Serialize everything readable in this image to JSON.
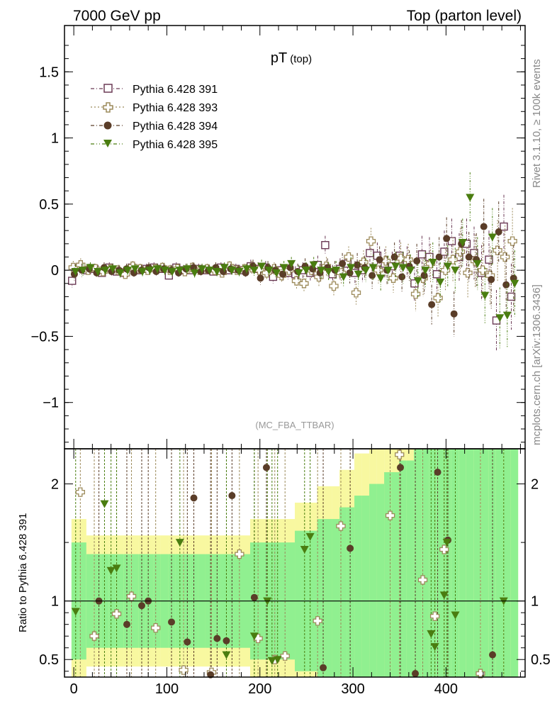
{
  "header": {
    "left": "7000 GeV pp",
    "right": "Top (parton level)"
  },
  "side_labels": {
    "rivet": "Rivet 3.1.10, ≥ 100k events",
    "mcplots": "mcplots.cern.ch [arXiv:1306.3436]"
  },
  "colors": {
    "s391": "#6b3a55",
    "s393": "#9c8a5a",
    "s394": "#5a3d28",
    "s395": "#4a7d10",
    "band_green": "#90f090",
    "band_yellow": "#f8f8a0"
  },
  "chart_data": [
    {
      "type": "scatter",
      "title": "pT",
      "title_sub": "(top)",
      "watermark": "(MC_FBA_TTBAR)",
      "xlim": [
        -10,
        485
      ],
      "ylim": [
        -1.35,
        1.85
      ],
      "yticks": [
        -1,
        -0.5,
        0,
        0.5,
        1,
        1.5
      ],
      "ytick_labels": [
        "−1",
        "−0.5",
        "0",
        "0.5",
        "1",
        "1.5"
      ],
      "legend_placement": "top-left",
      "x": [
        0,
        8,
        16,
        24,
        32,
        40,
        48,
        56,
        64,
        72,
        80,
        88,
        96,
        104,
        112,
        120,
        128,
        136,
        144,
        152,
        160,
        168,
        176,
        184,
        192,
        200,
        208,
        216,
        224,
        232,
        240,
        248,
        256,
        264,
        272,
        280,
        288,
        296,
        304,
        312,
        320,
        328,
        336,
        344,
        352,
        360,
        368,
        376,
        384,
        392,
        400,
        408,
        416,
        424,
        432,
        440,
        448,
        456,
        464,
        472
      ],
      "series": [
        {
          "name": "Pythia 6.428 391",
          "marker": "open-square",
          "color_key": "s391",
          "values": [
            -0.08,
            0.02,
            0.0,
            0.01,
            -0.02,
            0.02,
            -0.01,
            -0.02,
            0.02,
            0.0,
            0.01,
            0.02,
            0.01,
            -0.04,
            0.02,
            0.0,
            0.0,
            0.01,
            0.0,
            -0.01,
            0.02,
            0.0,
            0.01,
            0.0,
            0.03,
            0.01,
            0.02,
            -0.05,
            0.0,
            -0.02,
            -0.03,
            0.0,
            -0.02,
            0.04,
            0.19,
            -0.03,
            0.01,
            0.05,
            -0.02,
            0.0,
            0.13,
            0.11,
            0.05,
            0.03,
            0.11,
            0.06,
            -0.1,
            0.12,
            0.1,
            -0.03,
            0.14,
            0.22,
            0.1,
            0.2,
            0.13,
            -0.02,
            0.08,
            -0.38,
            0.33,
            -0.2
          ],
          "err": [
            0.05,
            0.05,
            0.04,
            0.04,
            0.04,
            0.04,
            0.04,
            0.04,
            0.04,
            0.04,
            0.04,
            0.04,
            0.04,
            0.04,
            0.04,
            0.04,
            0.04,
            0.04,
            0.04,
            0.04,
            0.04,
            0.04,
            0.04,
            0.04,
            0.05,
            0.05,
            0.05,
            0.05,
            0.05,
            0.05,
            0.06,
            0.06,
            0.06,
            0.07,
            0.07,
            0.07,
            0.08,
            0.08,
            0.09,
            0.09,
            0.1,
            0.1,
            0.11,
            0.11,
            0.12,
            0.12,
            0.13,
            0.14,
            0.15,
            0.15,
            0.16,
            0.17,
            0.18,
            0.19,
            0.2,
            0.21,
            0.22,
            0.23,
            0.24,
            0.25
          ]
        },
        {
          "name": "Pythia 6.428 393",
          "marker": "open-cross",
          "color_key": "s393",
          "values": [
            0.02,
            0.04,
            0.0,
            0.01,
            -0.01,
            0.01,
            0.0,
            -0.03,
            0.03,
            0.01,
            0.0,
            0.01,
            0.02,
            0.0,
            0.01,
            -0.01,
            0.02,
            0.0,
            0.01,
            0.0,
            -0.02,
            0.03,
            0.0,
            0.01,
            0.02,
            0.0,
            -0.02,
            0.01,
            -0.04,
            0.0,
            -0.08,
            -0.1,
            0.0,
            -0.05,
            0.03,
            -0.12,
            -0.02,
            0.1,
            -0.17,
            0.06,
            0.22,
            0.0,
            0.07,
            -0.06,
            0.09,
            0.08,
            -0.18,
            -0.06,
            0.05,
            -0.21,
            0.0,
            0.08,
            0.14,
            -0.02,
            0.07,
            0.0,
            -0.04,
            0.15,
            0.1,
            0.22
          ],
          "err": [
            0.05,
            0.05,
            0.04,
            0.04,
            0.04,
            0.04,
            0.04,
            0.04,
            0.04,
            0.04,
            0.04,
            0.04,
            0.04,
            0.04,
            0.04,
            0.04,
            0.04,
            0.04,
            0.04,
            0.04,
            0.04,
            0.04,
            0.04,
            0.04,
            0.05,
            0.05,
            0.05,
            0.05,
            0.05,
            0.05,
            0.06,
            0.06,
            0.06,
            0.07,
            0.07,
            0.07,
            0.08,
            0.08,
            0.09,
            0.09,
            0.1,
            0.1,
            0.11,
            0.11,
            0.12,
            0.12,
            0.13,
            0.14,
            0.15,
            0.15,
            0.16,
            0.17,
            0.18,
            0.19,
            0.2,
            0.21,
            0.22,
            0.23,
            0.24,
            0.25
          ]
        },
        {
          "name": "Pythia 6.428 394",
          "marker": "filled-circle",
          "color_key": "s394",
          "values": [
            -0.03,
            0.0,
            0.01,
            -0.02,
            0.02,
            -0.01,
            0.0,
            0.01,
            -0.02,
            0.0,
            0.02,
            -0.01,
            0.01,
            0.0,
            -0.02,
            0.01,
            0.02,
            -0.01,
            0.0,
            0.02,
            -0.01,
            0.01,
            0.0,
            -0.02,
            0.03,
            -0.06,
            0.02,
            0.0,
            -0.03,
            0.02,
            -0.01,
            0.03,
            0.01,
            -0.02,
            0.02,
            0.0,
            0.05,
            -0.02,
            0.04,
            0.02,
            -0.04,
            0.08,
            0.0,
            0.1,
            -0.05,
            0.03,
            0.07,
            -0.04,
            -0.26,
            0.1,
            0.24,
            -0.33,
            0.2,
            0.1,
            0.08,
            0.33,
            -0.07,
            0.29,
            -0.11,
            -0.06
          ],
          "err": [
            0.05,
            0.05,
            0.04,
            0.04,
            0.04,
            0.04,
            0.04,
            0.04,
            0.04,
            0.04,
            0.04,
            0.04,
            0.04,
            0.04,
            0.04,
            0.04,
            0.04,
            0.04,
            0.04,
            0.04,
            0.04,
            0.04,
            0.04,
            0.04,
            0.05,
            0.05,
            0.05,
            0.05,
            0.05,
            0.05,
            0.06,
            0.06,
            0.06,
            0.07,
            0.07,
            0.07,
            0.08,
            0.08,
            0.09,
            0.09,
            0.1,
            0.1,
            0.11,
            0.11,
            0.12,
            0.12,
            0.13,
            0.14,
            0.15,
            0.15,
            0.16,
            0.17,
            0.18,
            0.19,
            0.2,
            0.21,
            0.22,
            0.23,
            0.24,
            0.25
          ]
        },
        {
          "name": "Pythia 6.428 395",
          "marker": "filled-triangle-down",
          "color_key": "s395",
          "values": [
            -0.01,
            0.0,
            0.02,
            -0.01,
            0.0,
            0.01,
            -0.02,
            0.0,
            0.01,
            -0.01,
            0.0,
            0.01,
            0.0,
            -0.01,
            0.0,
            0.01,
            -0.02,
            0.01,
            0.0,
            -0.01,
            0.02,
            0.0,
            -0.01,
            0.01,
            0.0,
            0.03,
            0.0,
            -0.02,
            0.02,
            0.05,
            -0.02,
            0.0,
            0.04,
            0.0,
            -0.01,
            0.0,
            -0.05,
            0.02,
            -0.03,
            0.0,
            0.02,
            -0.06,
            0.0,
            0.03,
            0.02,
            0.0,
            -0.08,
            0.0,
            0.06,
            -0.09,
            0.03,
            0.0,
            0.21,
            0.55,
            0.05,
            -0.19,
            0.25,
            -0.36,
            -0.34,
            -0.1
          ],
          "err": [
            0.05,
            0.05,
            0.04,
            0.04,
            0.04,
            0.04,
            0.04,
            0.04,
            0.04,
            0.04,
            0.04,
            0.04,
            0.04,
            0.04,
            0.04,
            0.04,
            0.04,
            0.04,
            0.04,
            0.04,
            0.04,
            0.04,
            0.04,
            0.04,
            0.05,
            0.05,
            0.05,
            0.05,
            0.05,
            0.05,
            0.06,
            0.06,
            0.06,
            0.07,
            0.07,
            0.07,
            0.08,
            0.08,
            0.09,
            0.09,
            0.1,
            0.1,
            0.11,
            0.11,
            0.12,
            0.12,
            0.13,
            0.14,
            0.15,
            0.15,
            0.16,
            0.17,
            0.18,
            0.19,
            0.2,
            0.21,
            0.22,
            0.23,
            0.24,
            0.25
          ]
        }
      ]
    },
    {
      "type": "scatter",
      "ylabel": "Ratio to Pythia 6.428 391",
      "xlim": [
        -10,
        485
      ],
      "ylim": [
        0.35,
        2.3
      ],
      "yticks": [
        0.5,
        1,
        2
      ],
      "ytick_labels": [
        "0.5",
        "1",
        "2"
      ],
      "xticks": [
        0,
        100,
        200,
        300,
        400
      ],
      "xtick_labels": [
        "0",
        "100",
        "200",
        "300",
        "400"
      ],
      "reference_line": 1,
      "series": [
        {
          "name": "Pythia 6.428 393",
          "color_key": "s393",
          "marker": "open-cross",
          "x": [
            7,
            22,
            46,
            62,
            88,
            118,
            148,
            178,
            198,
            216,
            227,
            262,
            287,
            340,
            350,
            375,
            388,
            398,
            437
          ],
          "values": [
            1.93,
            0.7,
            0.89,
            1.04,
            0.77,
            0.41,
            0.39,
            1.4,
            0.68,
            0.5,
            0.53,
            0.83,
            1.64,
            1.73,
            2.25,
            1.18,
            0.87,
            1.44,
            0.38
          ]
        },
        {
          "name": "Pythia 6.428 394",
          "color_key": "s394",
          "marker": "filled-circle",
          "x": [
            27,
            57,
            73,
            80,
            105,
            122,
            129,
            147,
            154,
            164,
            170,
            194,
            207,
            268,
            297,
            351,
            367,
            391,
            402,
            450
          ],
          "values": [
            1.0,
            0.8,
            0.96,
            1.0,
            0.82,
            0.65,
            1.88,
            0.37,
            0.68,
            0.66,
            1.9,
            1.03,
            2.14,
            0.43,
            1.45,
            2.14,
            0.38,
            2.1,
            1.52,
            0.54
          ]
        },
        {
          "name": "Pythia 6.428 395",
          "color_key": "s395",
          "marker": "filled-triangle-down",
          "x": [
            2,
            33,
            40,
            46,
            114,
            164,
            194,
            208,
            213,
            219,
            248,
            254,
            384,
            388,
            398,
            401,
            410,
            462
          ],
          "values": [
            0.91,
            1.83,
            1.26,
            1.28,
            1.5,
            0.54,
            0.7,
            1.0,
            0.49,
            0.5,
            1.44,
            1.55,
            0.72,
            0.61,
            1.05,
            1.5,
            0.88,
            1.0
          ]
        }
      ]
    }
  ]
}
